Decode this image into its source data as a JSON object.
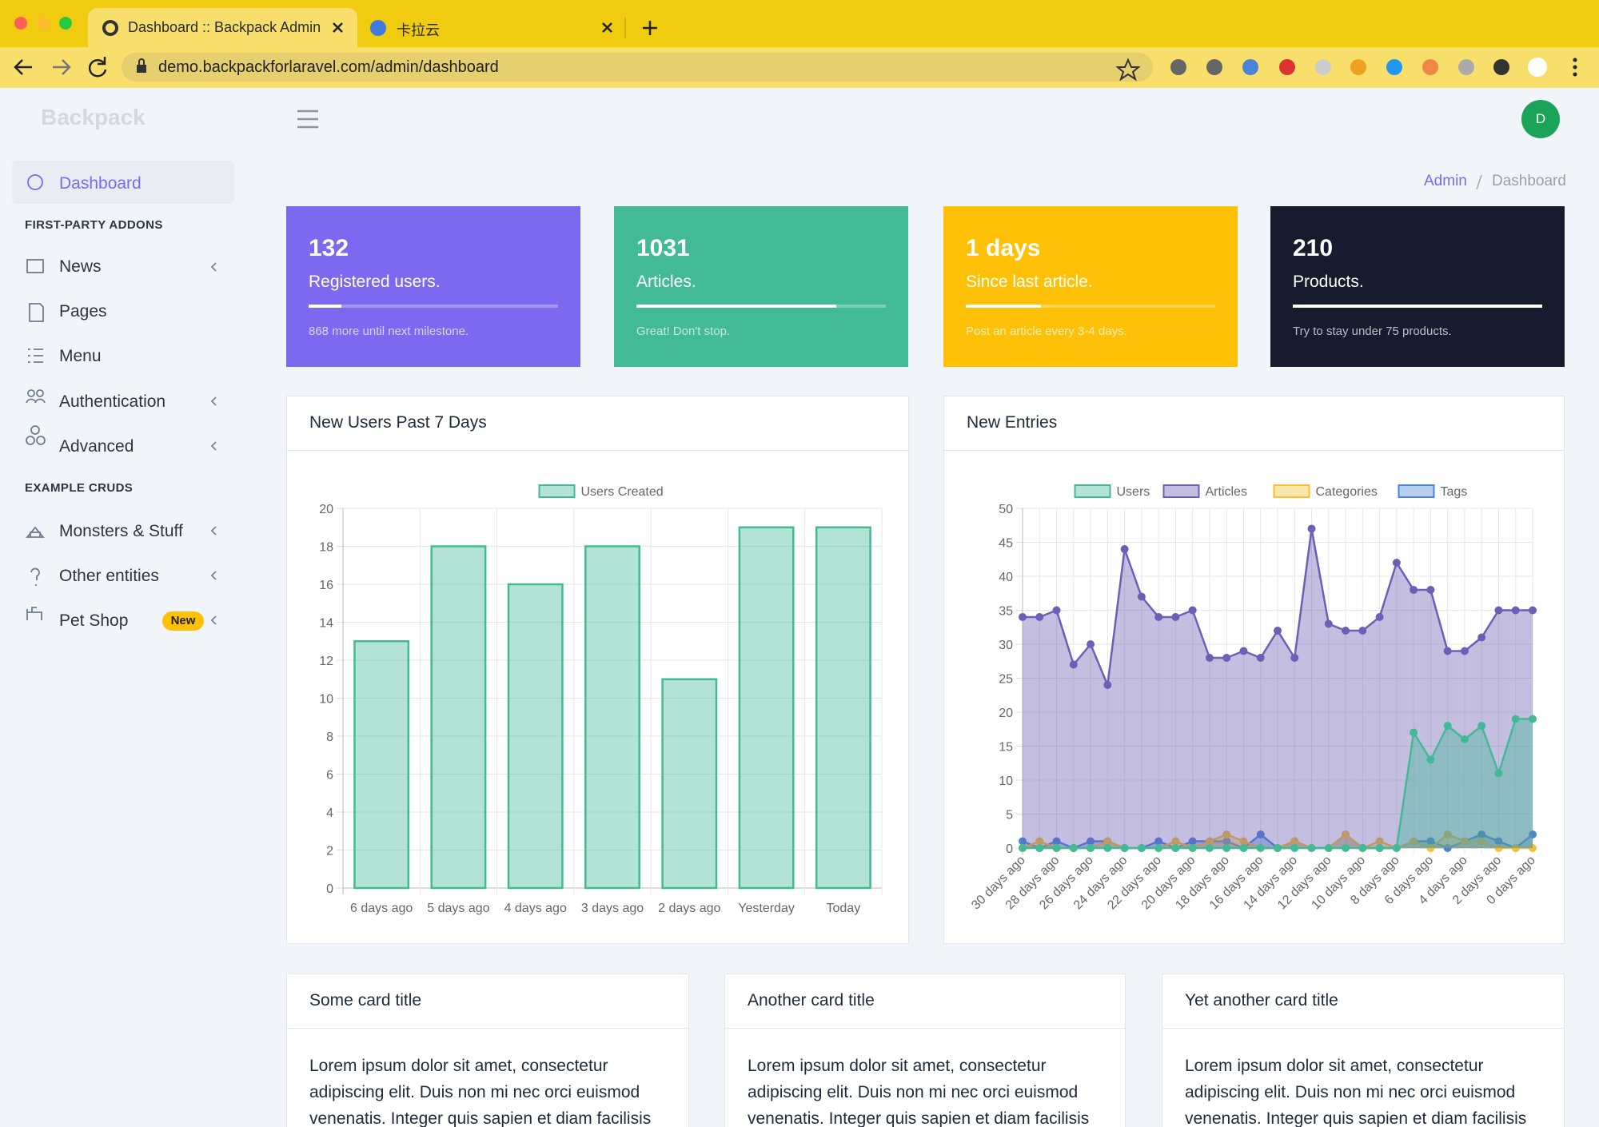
{
  "browser": {
    "tabs": [
      "Dashboard :: Backpack Admin",
      "卡拉云"
    ],
    "url": "demo.backpackforlaravel.com/admin/dashboard"
  },
  "sidebar": {
    "brand": "Backpack",
    "dashboard": "Dashboard",
    "sections": [
      {
        "title": "FIRST-PARTY ADDONS",
        "items": [
          "News",
          "Pages",
          "Menu",
          "Authentication",
          "Advanced"
        ]
      },
      {
        "title": "EXAMPLE CRUDS",
        "items": [
          "Monsters & Stuff",
          "Other entities",
          "Pet Shop"
        ]
      }
    ],
    "badge": "New"
  },
  "avatar": "D",
  "breadcrumb": [
    "Admin",
    "Dashboard"
  ],
  "stats": [
    {
      "value": 132,
      "label": "Registered users.",
      "progress": 13,
      "note": "868 more until next milestone.",
      "color": "#7c69ef"
    },
    {
      "value": 1031,
      "label": "Articles.",
      "progress": 80,
      "note": "Great! Don't stop.",
      "color": "#42ba96"
    },
    {
      "value": "1 days",
      "label": "Since last article.",
      "progress": 30,
      "note": "Post an article every 3-4 days.",
      "color": "#ffc107"
    },
    {
      "value": 210,
      "label": "Products.",
      "progress": 100,
      "note": "Try to stay under 75 products.",
      "color": "#161c2d"
    }
  ],
  "chart_data": [
    {
      "type": "bar",
      "title": "New Users Past 7 Days",
      "categories": [
        "6 days ago",
        "5 days ago",
        "4 days ago",
        "3 days ago",
        "2 days ago",
        "Yesterday",
        "Today"
      ],
      "series": [
        {
          "name": "Users Created",
          "color": "#42ba96",
          "values": [
            13,
            18,
            16,
            18,
            11,
            19,
            19
          ]
        }
      ],
      "ylim": [
        0,
        20
      ],
      "yticks": [
        0,
        2,
        4,
        6,
        8,
        10,
        12,
        14,
        16,
        18,
        20
      ],
      "grid": true,
      "legend": "top"
    },
    {
      "type": "line",
      "title": "New Entries",
      "area": true,
      "categories": [
        "30 days ago",
        null,
        "28 days ago",
        null,
        "26 days ago",
        null,
        "24 days ago",
        null,
        "22 days ago",
        null,
        "20 days ago",
        null,
        "18 days ago",
        null,
        "16 days ago",
        null,
        "14 days ago",
        null,
        "12 days ago",
        null,
        "10 days ago",
        null,
        "8 days ago",
        null,
        "6 days ago",
        null,
        "4 days ago",
        null,
        "2 days ago",
        null,
        "0 days ago"
      ],
      "series": [
        {
          "name": "Users",
          "color": "#42ba96",
          "values": [
            0,
            0,
            0,
            0,
            0,
            0,
            0,
            0,
            0,
            0,
            0,
            0,
            0,
            0,
            0,
            0,
            0,
            0,
            0,
            0,
            0,
            0,
            0,
            17,
            13,
            18,
            16,
            18,
            11,
            19,
            19
          ]
        },
        {
          "name": "Articles",
          "color": "#6c5fb5",
          "values": [
            34,
            34,
            35,
            27,
            30,
            24,
            44,
            37,
            34,
            34,
            35,
            28,
            28,
            29,
            28,
            32,
            28,
            47,
            33,
            32,
            32,
            34,
            42,
            38,
            38,
            29,
            29,
            31,
            35,
            35,
            35
          ]
        },
        {
          "name": "Categories",
          "color": "#f5c033",
          "values": [
            0,
            1,
            0,
            0,
            0,
            1,
            0,
            0,
            0,
            1,
            0,
            1,
            2,
            1,
            0,
            0,
            1,
            0,
            0,
            2,
            0,
            1,
            0,
            1,
            0,
            2,
            1,
            1,
            0,
            0,
            0
          ]
        },
        {
          "name": "Tags",
          "color": "#4a84d6",
          "values": [
            1,
            0,
            1,
            0,
            1,
            1,
            0,
            0,
            1,
            0,
            1,
            1,
            1,
            0,
            2,
            0,
            1,
            0,
            0,
            2,
            0,
            0,
            0,
            1,
            1,
            0,
            1,
            2,
            1,
            0,
            2
          ]
        }
      ],
      "ylim": [
        0,
        50
      ],
      "yticks": [
        0,
        5,
        10,
        15,
        20,
        25,
        30,
        35,
        40,
        45,
        50
      ],
      "grid": true,
      "legend": "top"
    }
  ],
  "cards": [
    {
      "title": "Some card title",
      "text": "Lorem ipsum dolor sit amet, consectetur adipiscing elit. Duis non mi nec orci euismod venenatis. Integer quis sapien et diam facilisis"
    },
    {
      "title": "Another card title",
      "text": "Lorem ipsum dolor sit amet, consectetur adipiscing elit. Duis non mi nec orci euismod venenatis. Integer quis sapien et diam facilisis"
    },
    {
      "title": "Yet another card title",
      "text": "Lorem ipsum dolor sit amet, consectetur adipiscing elit. Duis non mi nec orci euismod venenatis. Integer quis sapien et diam facilisis"
    }
  ]
}
